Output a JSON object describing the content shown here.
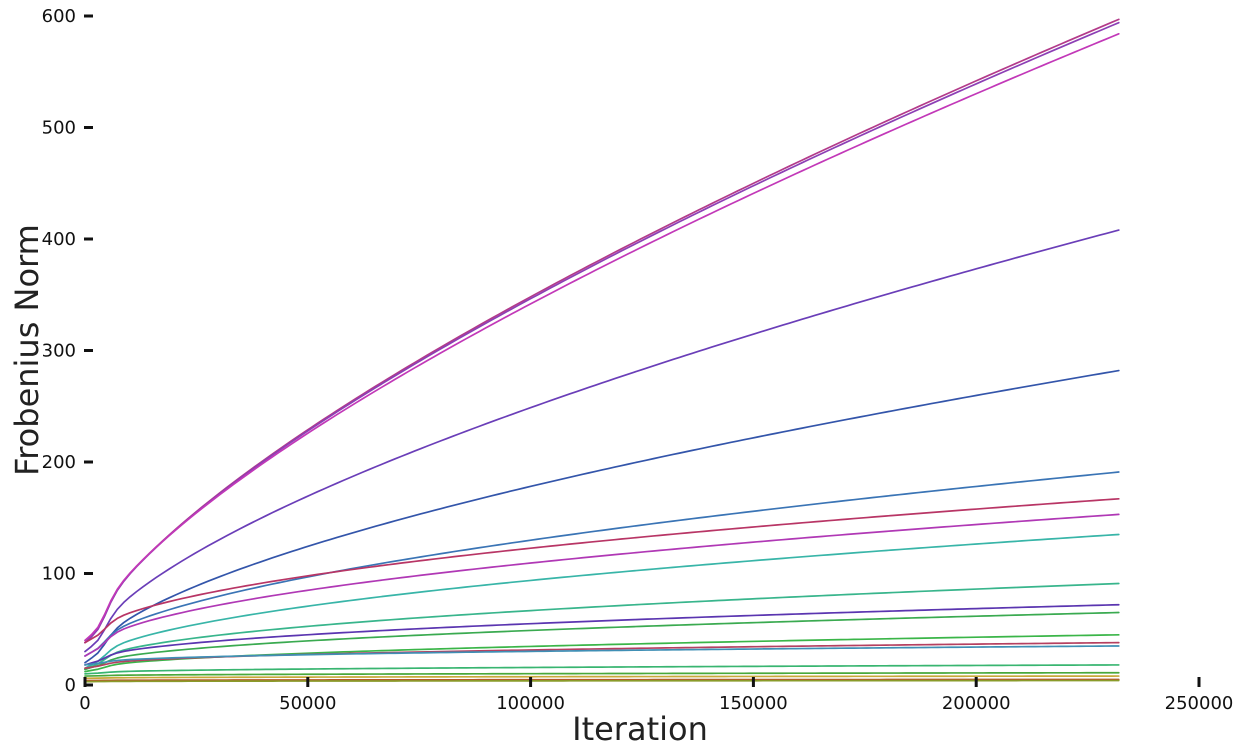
{
  "chart_data": {
    "type": "line",
    "title": "",
    "xlabel": "Iteration",
    "ylabel": "Frobenius Norm",
    "xlim": [
      0,
      250000
    ],
    "ylim": [
      0,
      600
    ],
    "x_ticks": [
      0,
      50000,
      100000,
      150000,
      200000,
      250000
    ],
    "y_ticks": [
      0,
      100,
      200,
      300,
      400,
      500,
      600
    ],
    "x_tick_labels": [
      "0",
      "50000",
      "100000",
      "150000",
      "200000",
      "250000"
    ],
    "y_tick_labels": [
      "0",
      "100",
      "200",
      "300",
      "400",
      "500",
      "600"
    ],
    "grid": false,
    "legend": "none",
    "x_end": 232000,
    "series": [
      {
        "color": "#b33a8a",
        "start": 38,
        "end": 597,
        "knee": 0.7
      },
      {
        "color": "#8c3fb5",
        "start": 38,
        "end": 594,
        "knee": 0.7
      },
      {
        "color": "#c238b8",
        "start": 40,
        "end": 584,
        "knee": 0.7
      },
      {
        "color": "#6a3eb8",
        "start": 30,
        "end": 408,
        "knee": 0.65
      },
      {
        "color": "#3355aa",
        "start": 20,
        "end": 282,
        "knee": 0.6
      },
      {
        "color": "#3a74b5",
        "start": 26,
        "end": 191,
        "knee": 0.55
      },
      {
        "color": "#b83565",
        "start": 38,
        "end": 167,
        "knee": 0.5
      },
      {
        "color": "#b038b5",
        "start": 26,
        "end": 153,
        "knee": 0.5
      },
      {
        "color": "#38b5a8",
        "start": 15,
        "end": 135,
        "knee": 0.5
      },
      {
        "color": "#38b58c",
        "start": 14,
        "end": 91,
        "knee": 0.45
      },
      {
        "color": "#5a35b0",
        "start": 18,
        "end": 72,
        "knee": 0.45
      },
      {
        "color": "#3aaa50",
        "start": 14,
        "end": 65,
        "knee": 0.45
      },
      {
        "color": "#3ab548",
        "start": 12,
        "end": 45,
        "knee": 0.45
      },
      {
        "color": "#b54060",
        "start": 15,
        "end": 38,
        "knee": 0.4
      },
      {
        "color": "#3f8fb5",
        "start": 18,
        "end": 35,
        "knee": 0.4
      },
      {
        "color": "#38b570",
        "start": 10,
        "end": 18,
        "knee": 0.4
      },
      {
        "color": "#4aa83a",
        "start": 8,
        "end": 11,
        "knee": 0.4
      },
      {
        "color": "#c8a838",
        "start": 6,
        "end": 8,
        "knee": 0.4
      },
      {
        "color": "#b55a2a",
        "start": 4,
        "end": 5,
        "knee": 0.4
      },
      {
        "color": "#8a9b2a",
        "start": 3,
        "end": 4,
        "knee": 0.4
      }
    ]
  }
}
